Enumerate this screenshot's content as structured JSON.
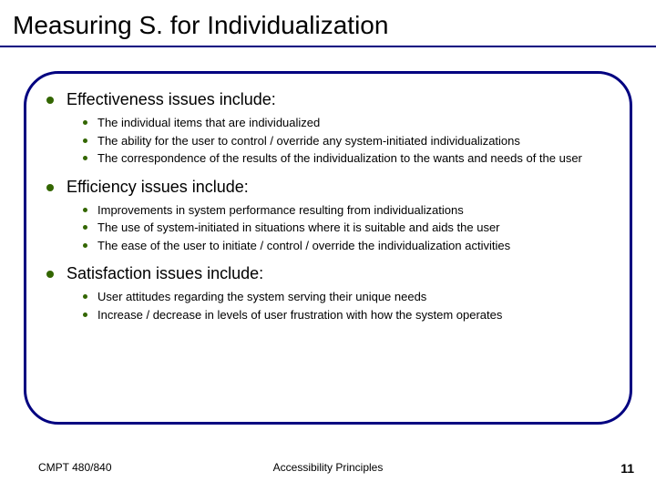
{
  "title": "Measuring S. for Individualization",
  "colors": {
    "accent": "#000080",
    "bullet": "#336600",
    "background": "#ffffff",
    "text": "#000000"
  },
  "typography": {
    "title_fontsize": 28,
    "section_fontsize": 18,
    "sub_fontsize": 13,
    "footer_fontsize": 12,
    "page_number_fontsize": 14
  },
  "sections": [
    {
      "heading": "Effectiveness issues include:",
      "items": [
        "The individual items that are individualized",
        "The ability for the user to control / override any system-initiated individualizations",
        "The correspondence of the results of the individualization to the wants and needs of the user"
      ]
    },
    {
      "heading": "Efficiency issues include:",
      "items": [
        "Improvements in system performance resulting from individualizations",
        "The use of system-initiated in situations where it is suitable and aids the user",
        "The ease of the user to initiate / control / override the individualization activities"
      ]
    },
    {
      "heading": "Satisfaction issues include:",
      "items": [
        "User attitudes regarding the system serving their unique needs",
        "Increase / decrease in levels of user frustration with how the system operates"
      ]
    }
  ],
  "footer": {
    "left": "CMPT 480/840",
    "center": "Accessibility Principles",
    "page_number": "11"
  },
  "layout": {
    "slide_width": 720,
    "slide_height": 540,
    "frame_border_radius": 38,
    "frame_border_width": 3
  }
}
